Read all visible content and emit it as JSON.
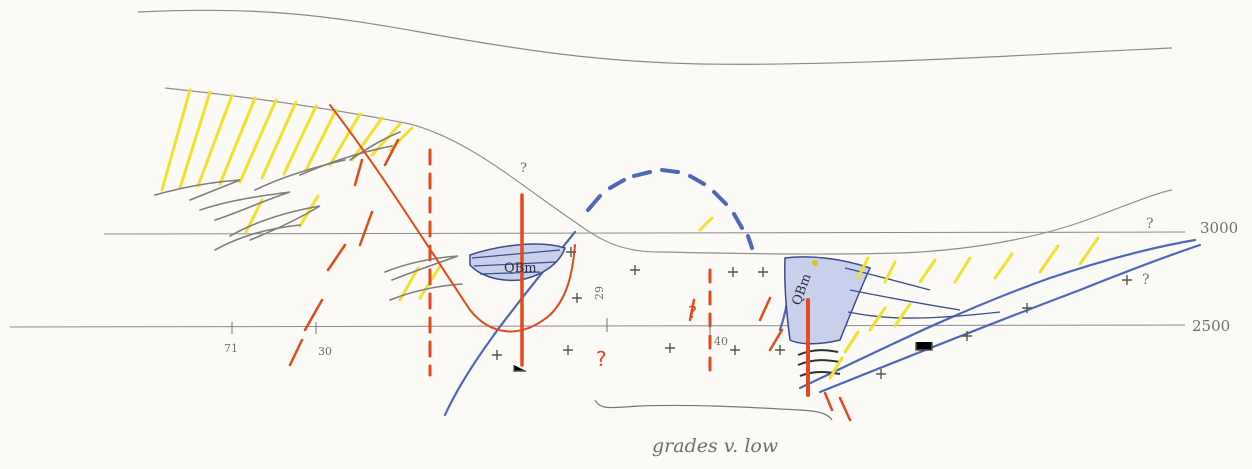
{
  "diagram": {
    "elevation_labels": {
      "upper": "3000",
      "lower": "2500"
    },
    "station_labels": {
      "s71": "71",
      "s30": "30",
      "s29": "29",
      "s40": "40"
    },
    "unit_labels": {
      "left_unit": "QBm",
      "right_unit": "QBm"
    },
    "query_marks": {
      "q": "?"
    },
    "footnote": "grades v. low",
    "colors": {
      "paper": "#fbfaf6",
      "pencil": "#8a8a8a",
      "yellow": "#f1e12a",
      "red": "#e04a1e",
      "blue": "#4f67b8",
      "dark": "#2d2f38"
    }
  }
}
